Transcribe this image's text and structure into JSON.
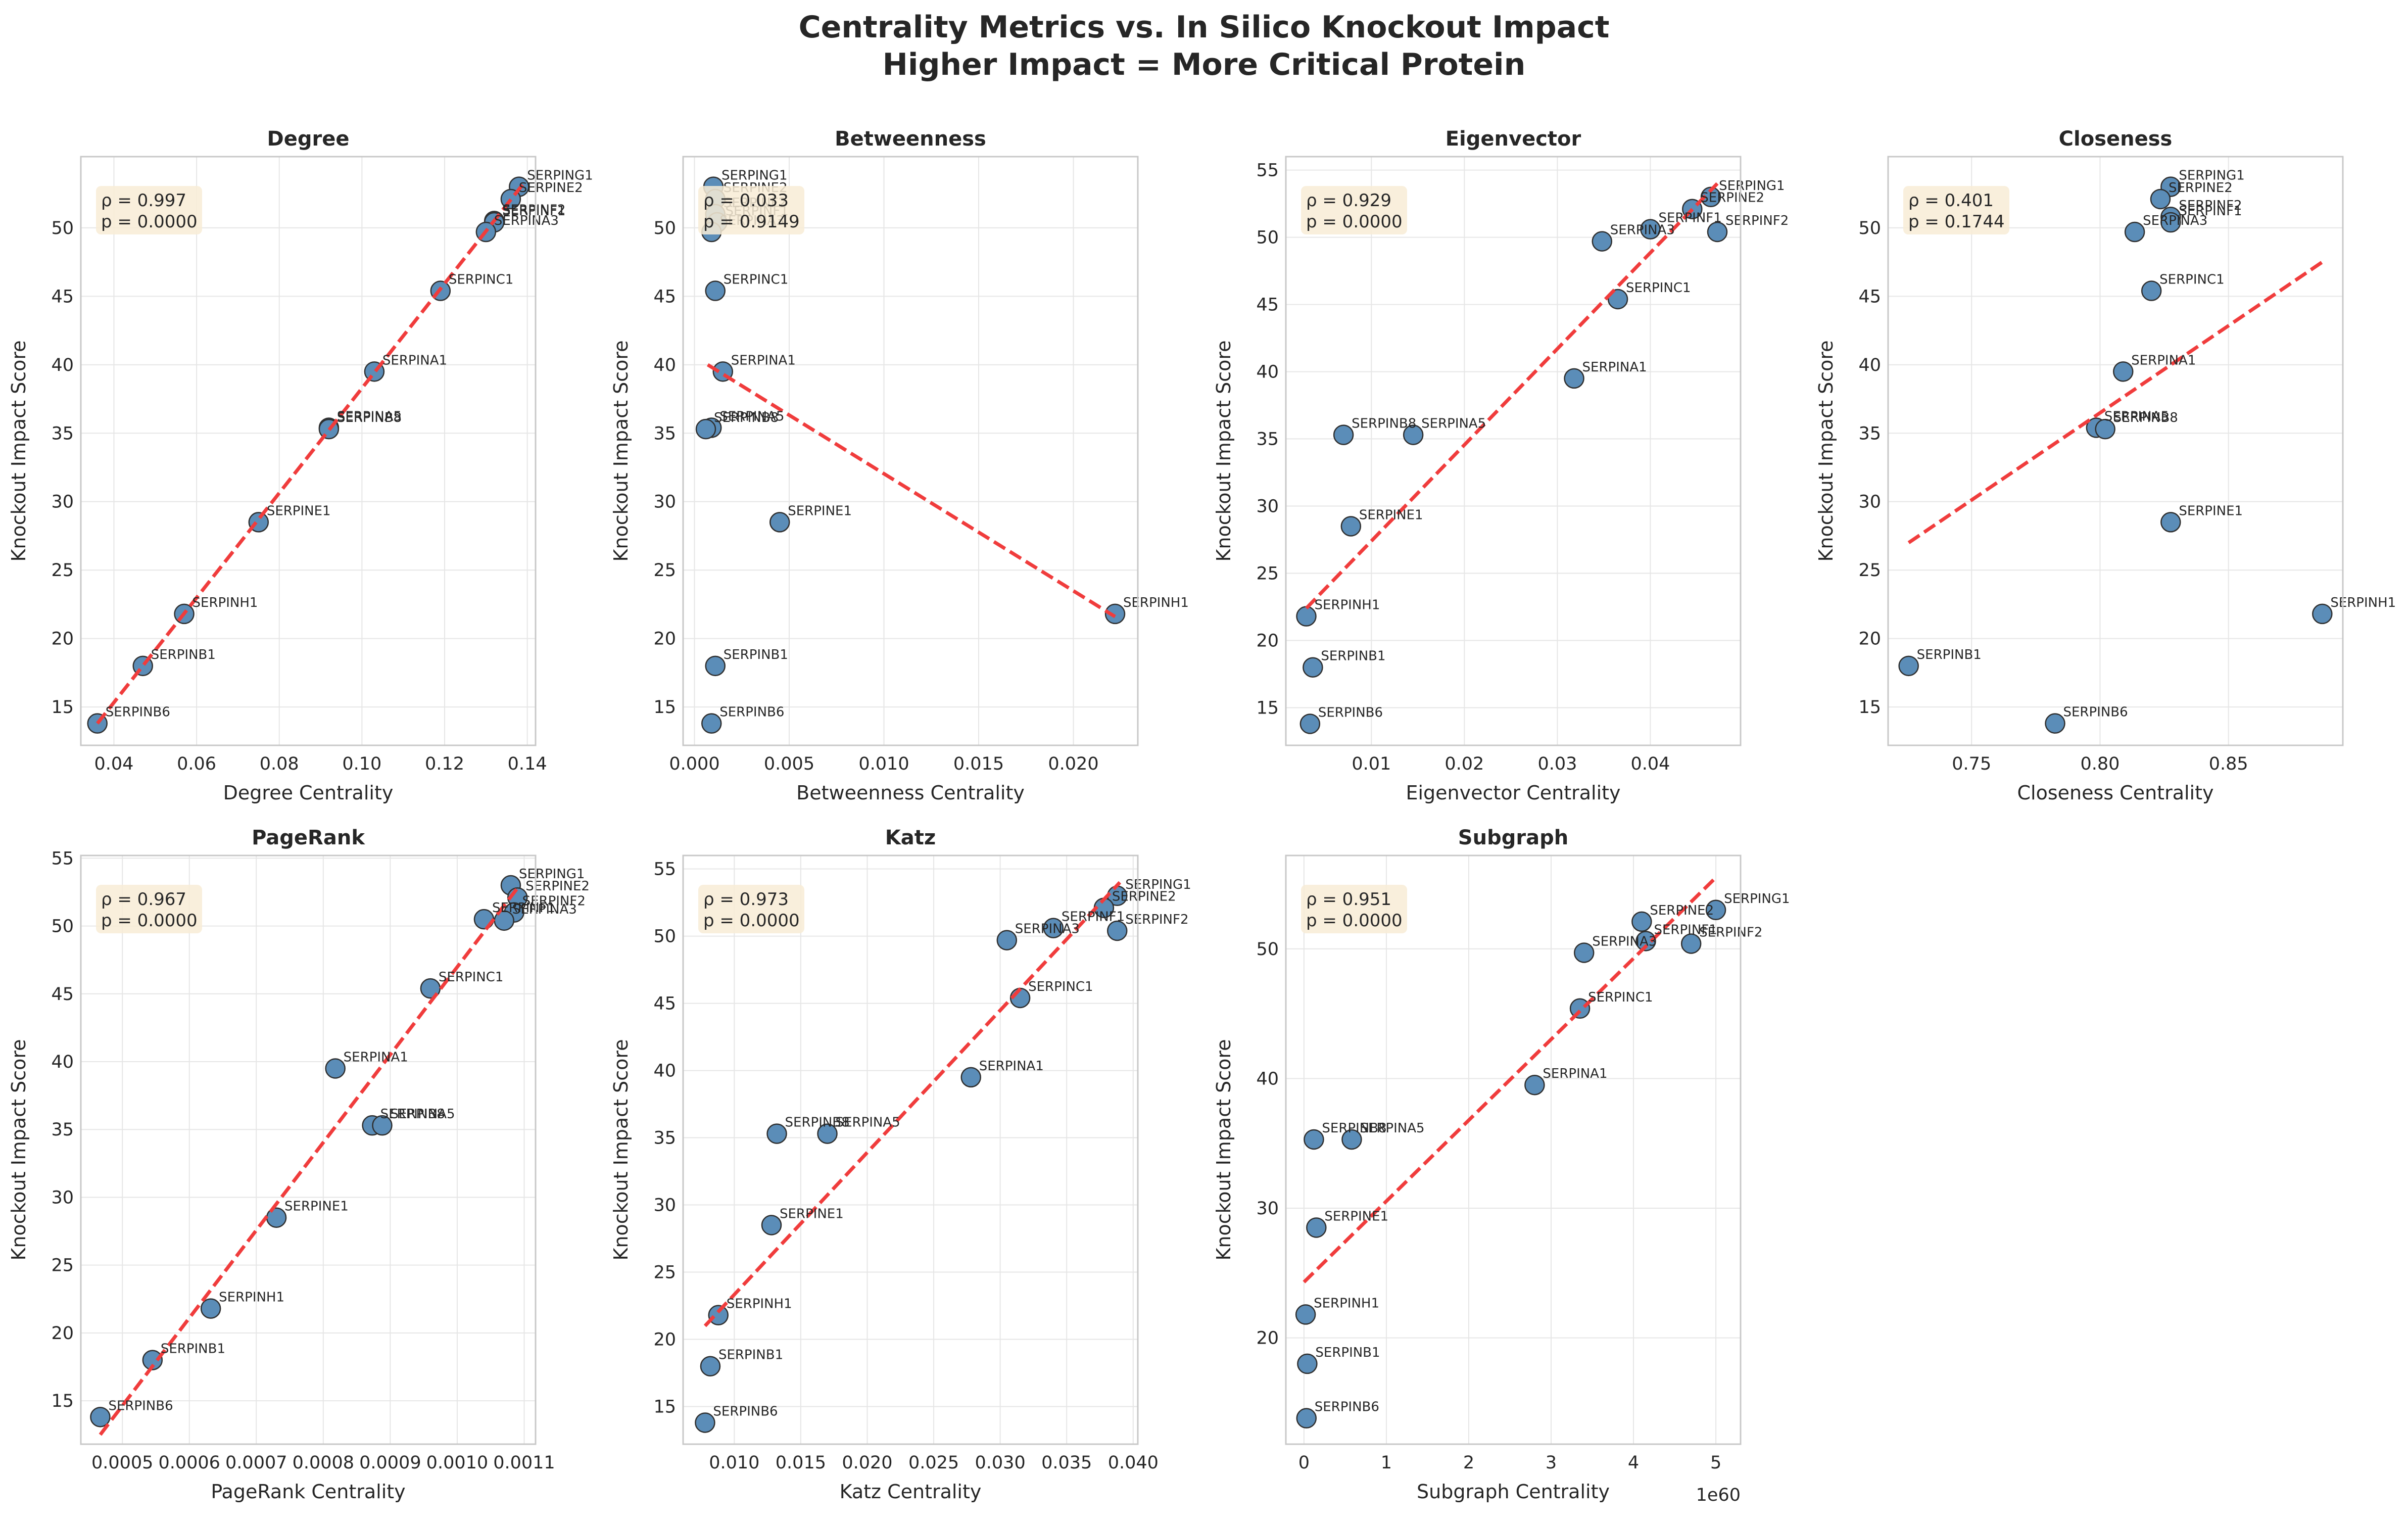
{
  "figure": {
    "title_line1": "Centrality Metrics vs. In Silico Knockout Impact",
    "title_line2": "Higher Impact = More Critical Protein"
  },
  "colors": {
    "point_fill": "#5b8db8",
    "point_edge": "#2f2f2f",
    "fit_line": "#f03c3c",
    "stats_box": "#f8ecd6",
    "grid": "#e6e6e6",
    "frame": "#c8c8c8"
  },
  "chart_data": [
    {
      "type": "scatter",
      "title": "Degree",
      "xlabel": "Degree Centrality",
      "ylabel": "Knockout Impact Score",
      "stats": [
        "ρ = 0.997",
        "p = 0.0000"
      ],
      "xlim": [
        0.032,
        0.142
      ],
      "ylim": [
        12.2,
        55.2
      ],
      "xticks": [
        0.04,
        0.06,
        0.08,
        0.1,
        0.12,
        0.14
      ],
      "xticklabels": [
        "0.04",
        "0.06",
        "0.08",
        "0.10",
        "0.12",
        "0.14"
      ],
      "yticks": [
        15,
        20,
        25,
        30,
        35,
        40,
        45,
        50
      ],
      "yticklabels": [
        "15",
        "20",
        "25",
        "30",
        "35",
        "40",
        "45",
        "50"
      ],
      "fit": [
        [
          0.036,
          13.8
        ],
        [
          0.139,
          53.2
        ]
      ],
      "points": [
        {
          "label": "SERPING1",
          "x": 0.138,
          "y": 53.0
        },
        {
          "label": "SERPINE2",
          "x": 0.136,
          "y": 52.1
        },
        {
          "label": "SERPINF2",
          "x": 0.132,
          "y": 50.5
        },
        {
          "label": "SERPINF1",
          "x": 0.132,
          "y": 50.4
        },
        {
          "label": "SERPINA3",
          "x": 0.13,
          "y": 49.7
        },
        {
          "label": "SERPINC1",
          "x": 0.119,
          "y": 45.4
        },
        {
          "label": "SERPINA1",
          "x": 0.103,
          "y": 39.5
        },
        {
          "label": "SERPINA5",
          "x": 0.092,
          "y": 35.4
        },
        {
          "label": "SERPINB8",
          "x": 0.092,
          "y": 35.3
        },
        {
          "label": "SERPINE1",
          "x": 0.075,
          "y": 28.5
        },
        {
          "label": "SERPINH1",
          "x": 0.057,
          "y": 21.8
        },
        {
          "label": "SERPINB1",
          "x": 0.047,
          "y": 18.0
        },
        {
          "label": "SERPINB6",
          "x": 0.036,
          "y": 13.8
        }
      ]
    },
    {
      "type": "scatter",
      "title": "Betweenness",
      "xlabel": "Betweenness Centrality",
      "ylabel": "Knockout Impact Score",
      "stats": [
        "ρ = 0.033",
        "p = 0.9149"
      ],
      "xlim": [
        -0.0006,
        0.0234
      ],
      "ylim": [
        12.2,
        55.2
      ],
      "xticks": [
        0.0,
        0.005,
        0.01,
        0.015,
        0.02
      ],
      "xticklabels": [
        "0.000",
        "0.005",
        "0.010",
        "0.015",
        "0.020"
      ],
      "yticks": [
        15,
        20,
        25,
        30,
        35,
        40,
        45,
        50
      ],
      "yticklabels": [
        "15",
        "20",
        "25",
        "30",
        "35",
        "40",
        "45",
        "50"
      ],
      "fit": [
        [
          0.0007,
          40.0
        ],
        [
          0.0222,
          21.6
        ]
      ],
      "points": [
        {
          "label": "SERPING1",
          "x": 0.001,
          "y": 53.0
        },
        {
          "label": "SERPINE2",
          "x": 0.0011,
          "y": 52.1
        },
        {
          "label": "SERPINF2",
          "x": 0.0011,
          "y": 51.0
        },
        {
          "label": "SERPINF1",
          "x": 0.0012,
          "y": 50.4
        },
        {
          "label": "SERPINA3",
          "x": 0.0009,
          "y": 49.7
        },
        {
          "label": "SERPINC1",
          "x": 0.0011,
          "y": 45.4
        },
        {
          "label": "SERPINA1",
          "x": 0.0015,
          "y": 39.5
        },
        {
          "label": "SERPINA5",
          "x": 0.0009,
          "y": 35.4
        },
        {
          "label": "SERPINB8",
          "x": 0.0006,
          "y": 35.3
        },
        {
          "label": "SERPINE1",
          "x": 0.0045,
          "y": 28.5
        },
        {
          "label": "SERPINH1",
          "x": 0.0222,
          "y": 21.8
        },
        {
          "label": "SERPINB1",
          "x": 0.0011,
          "y": 18.0
        },
        {
          "label": "SERPINB6",
          "x": 0.0009,
          "y": 13.8
        }
      ]
    },
    {
      "type": "scatter",
      "title": "Eigenvector",
      "xlabel": "Eigenvector Centrality",
      "ylabel": "Knockout Impact Score",
      "stats": [
        "ρ = 0.929",
        "p = 0.0000"
      ],
      "xlim": [
        0.0008,
        0.0497
      ],
      "ylim": [
        12.2,
        56.0
      ],
      "xticks": [
        0.01,
        0.02,
        0.03,
        0.04
      ],
      "xticklabels": [
        "0.01",
        "0.02",
        "0.03",
        "0.04"
      ],
      "yticks": [
        15,
        20,
        25,
        30,
        35,
        40,
        45,
        50,
        55
      ],
      "yticklabels": [
        "15",
        "20",
        "25",
        "30",
        "35",
        "40",
        "45",
        "50",
        "55"
      ],
      "fit": [
        [
          0.003,
          22.4
        ],
        [
          0.0472,
          54.0
        ]
      ],
      "points": [
        {
          "label": "SERPING1",
          "x": 0.0465,
          "y": 53.0
        },
        {
          "label": "SERPINE2",
          "x": 0.0445,
          "y": 52.1
        },
        {
          "label": "SERPINF1",
          "x": 0.04,
          "y": 50.6
        },
        {
          "label": "SERPINF2",
          "x": 0.0472,
          "y": 50.4
        },
        {
          "label": "SERPINA3",
          "x": 0.0348,
          "y": 49.7
        },
        {
          "label": "SERPINC1",
          "x": 0.0365,
          "y": 45.4
        },
        {
          "label": "SERPINA1",
          "x": 0.0318,
          "y": 39.5
        },
        {
          "label": "SERPINB8",
          "x": 0.007,
          "y": 35.3
        },
        {
          "label": "SERPINA5",
          "x": 0.0145,
          "y": 35.3
        },
        {
          "label": "SERPINE1",
          "x": 0.0078,
          "y": 28.5
        },
        {
          "label": "SERPINH1",
          "x": 0.003,
          "y": 21.8
        },
        {
          "label": "SERPINB1",
          "x": 0.0037,
          "y": 18.0
        },
        {
          "label": "SERPINB6",
          "x": 0.0034,
          "y": 13.8
        }
      ]
    },
    {
      "type": "scatter",
      "title": "Closeness",
      "xlabel": "Closeness Centrality",
      "ylabel": "Knockout Impact Score",
      "stats": [
        "ρ = 0.401",
        "p = 0.1744"
      ],
      "xlim": [
        0.7175,
        0.8945
      ],
      "ylim": [
        12.2,
        55.2
      ],
      "xticks": [
        0.75,
        0.8,
        0.85
      ],
      "xticklabels": [
        "0.75",
        "0.80",
        "0.85"
      ],
      "yticks": [
        15,
        20,
        25,
        30,
        35,
        40,
        45,
        50
      ],
      "yticklabels": [
        "15",
        "20",
        "25",
        "30",
        "35",
        "40",
        "45",
        "50"
      ],
      "fit": [
        [
          0.7255,
          27.0
        ],
        [
          0.8865,
          47.5
        ]
      ],
      "points": [
        {
          "label": "SERPING1",
          "x": 0.8275,
          "y": 53.0
        },
        {
          "label": "SERPINE2",
          "x": 0.8235,
          "y": 52.1
        },
        {
          "label": "SERPINF2",
          "x": 0.8275,
          "y": 50.8
        },
        {
          "label": "SERPINF1",
          "x": 0.8275,
          "y": 50.4
        },
        {
          "label": "SERPINA3",
          "x": 0.8135,
          "y": 49.7
        },
        {
          "label": "SERPINC1",
          "x": 0.82,
          "y": 45.4
        },
        {
          "label": "SERPINA1",
          "x": 0.809,
          "y": 39.5
        },
        {
          "label": "SERPINA5",
          "x": 0.7985,
          "y": 35.4
        },
        {
          "label": "SERPINB8",
          "x": 0.802,
          "y": 35.3
        },
        {
          "label": "SERPINE1",
          "x": 0.8275,
          "y": 28.5
        },
        {
          "label": "SERPINH1",
          "x": 0.8865,
          "y": 21.8
        },
        {
          "label": "SERPINB1",
          "x": 0.7255,
          "y": 18.0
        },
        {
          "label": "SERPINB6",
          "x": 0.7825,
          "y": 13.8
        }
      ]
    },
    {
      "type": "scatter",
      "title": "PageRank",
      "xlabel": "PageRank Centrality",
      "ylabel": "Knockout Impact Score",
      "stats": [
        "ρ = 0.967",
        "p = 0.0000"
      ],
      "xlim": [
        0.000438,
        0.001117
      ],
      "ylim": [
        11.8,
        55.2
      ],
      "xticks": [
        0.0005,
        0.0006,
        0.0007,
        0.0008,
        0.0009,
        0.001,
        0.0011
      ],
      "xticklabels": [
        "0.0005",
        "0.0006",
        "0.0007",
        "0.0008",
        "0.0009",
        "0.0010",
        "0.0011"
      ],
      "yticks": [
        15,
        20,
        25,
        30,
        35,
        40,
        45,
        50,
        55
      ],
      "yticklabels": [
        "15",
        "20",
        "25",
        "30",
        "35",
        "40",
        "45",
        "50",
        "55"
      ],
      "fit": [
        [
          0.000467,
          12.5
        ],
        [
          0.00109,
          52.8
        ]
      ],
      "points": [
        {
          "label": "SERPING1",
          "x": 0.00108,
          "y": 53.0
        },
        {
          "label": "SERPINE2",
          "x": 0.00109,
          "y": 52.1
        },
        {
          "label": "SERPINF2",
          "x": 0.001085,
          "y": 51.0
        },
        {
          "label": "SERPINF1",
          "x": 0.00104,
          "y": 50.5
        },
        {
          "label": "SERPINA3",
          "x": 0.00107,
          "y": 50.4
        },
        {
          "label": "SERPINC1",
          "x": 0.00096,
          "y": 45.4
        },
        {
          "label": "SERPINA1",
          "x": 0.000818,
          "y": 39.5
        },
        {
          "label": "SERPINB8",
          "x": 0.000873,
          "y": 35.3
        },
        {
          "label": "SERPINA5",
          "x": 0.000888,
          "y": 35.3
        },
        {
          "label": "SERPINE1",
          "x": 0.00073,
          "y": 28.5
        },
        {
          "label": "SERPINH1",
          "x": 0.000632,
          "y": 21.8
        },
        {
          "label": "SERPINB1",
          "x": 0.000545,
          "y": 18.0
        },
        {
          "label": "SERPINB6",
          "x": 0.000467,
          "y": 13.8
        }
      ]
    },
    {
      "type": "scatter",
      "title": "Katz",
      "xlabel": "Katz Centrality",
      "ylabel": "Knockout Impact Score",
      "stats": [
        "ρ = 0.973",
        "p = 0.0000"
      ],
      "xlim": [
        0.00615,
        0.04035
      ],
      "ylim": [
        12.2,
        56.0
      ],
      "xticks": [
        0.01,
        0.015,
        0.02,
        0.025,
        0.03,
        0.035,
        0.04
      ],
      "xticklabels": [
        "0.010",
        "0.015",
        "0.020",
        "0.025",
        "0.030",
        "0.035",
        "0.040"
      ],
      "yticks": [
        15,
        20,
        25,
        30,
        35,
        40,
        45,
        50,
        55
      ],
      "yticklabels": [
        "15",
        "20",
        "25",
        "30",
        "35",
        "40",
        "45",
        "50",
        "55"
      ],
      "fit": [
        [
          0.0078,
          21.0
        ],
        [
          0.039,
          54.0
        ]
      ],
      "points": [
        {
          "label": "SERPING1",
          "x": 0.0388,
          "y": 53.0
        },
        {
          "label": "SERPINE2",
          "x": 0.0378,
          "y": 52.1
        },
        {
          "label": "SERPINF1",
          "x": 0.034,
          "y": 50.6
        },
        {
          "label": "SERPINF2",
          "x": 0.0388,
          "y": 50.4
        },
        {
          "label": "SERPINA3",
          "x": 0.0305,
          "y": 49.7
        },
        {
          "label": "SERPINC1",
          "x": 0.0315,
          "y": 45.4
        },
        {
          "label": "SERPINA1",
          "x": 0.0278,
          "y": 39.5
        },
        {
          "label": "SERPINB8",
          "x": 0.0132,
          "y": 35.3
        },
        {
          "label": "SERPINA5",
          "x": 0.017,
          "y": 35.3
        },
        {
          "label": "SERPINE1",
          "x": 0.0128,
          "y": 28.5
        },
        {
          "label": "SERPINH1",
          "x": 0.0088,
          "y": 21.8
        },
        {
          "label": "SERPINB1",
          "x": 0.0082,
          "y": 18.0
        },
        {
          "label": "SERPINB6",
          "x": 0.0078,
          "y": 13.8
        }
      ]
    },
    {
      "type": "scatter",
      "title": "Subgraph",
      "xlabel": "Subgraph Centrality",
      "ylabel": "Knockout Impact Score",
      "xoffset": "1e60",
      "stats": [
        "ρ = 0.951",
        "p = 0.0000"
      ],
      "xlim": [
        -0.22,
        5.3
      ],
      "ylim": [
        11.8,
        57.2
      ],
      "xticks": [
        0,
        1,
        2,
        3,
        4,
        5
      ],
      "xticklabels": [
        "0",
        "1",
        "2",
        "3",
        "4",
        "5"
      ],
      "yticks": [
        20,
        30,
        40,
        50
      ],
      "yticklabels": [
        "20",
        "30",
        "40",
        "50"
      ],
      "fit": [
        [
          0.0,
          24.3
        ],
        [
          5.0,
          55.5
        ]
      ],
      "points": [
        {
          "label": "SERPING1",
          "x": 5.0,
          "y": 53.0
        },
        {
          "label": "SERPINE2",
          "x": 4.1,
          "y": 52.1
        },
        {
          "label": "SERPINF1",
          "x": 4.15,
          "y": 50.6
        },
        {
          "label": "SERPINF2",
          "x": 4.7,
          "y": 50.4
        },
        {
          "label": "SERPINA3",
          "x": 3.4,
          "y": 49.7
        },
        {
          "label": "SERPINC1",
          "x": 3.35,
          "y": 45.4
        },
        {
          "label": "SERPINA1",
          "x": 2.8,
          "y": 39.5
        },
        {
          "label": "SERPINB8",
          "x": 0.12,
          "y": 35.3
        },
        {
          "label": "SERPINA5",
          "x": 0.58,
          "y": 35.3
        },
        {
          "label": "SERPINE1",
          "x": 0.15,
          "y": 28.5
        },
        {
          "label": "SERPINH1",
          "x": 0.02,
          "y": 21.8
        },
        {
          "label": "SERPINB1",
          "x": 0.04,
          "y": 18.0
        },
        {
          "label": "SERPINB6",
          "x": 0.03,
          "y": 13.8
        }
      ]
    }
  ]
}
